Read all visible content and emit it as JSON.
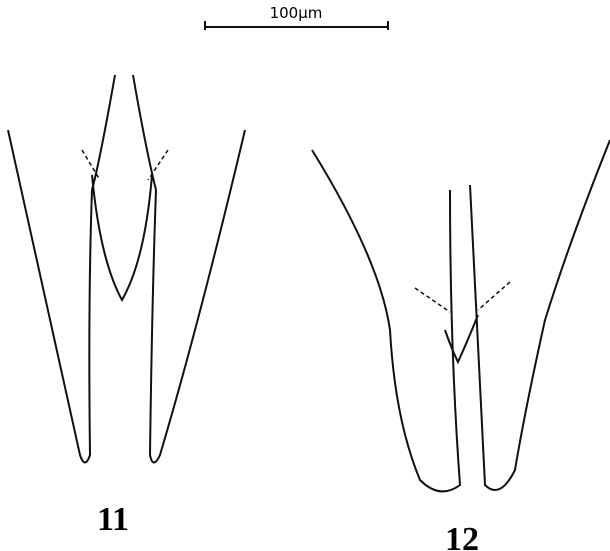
{
  "scale_bar": {
    "label": "100µm"
  },
  "figures": [
    {
      "label": "11"
    },
    {
      "label": "12"
    }
  ]
}
